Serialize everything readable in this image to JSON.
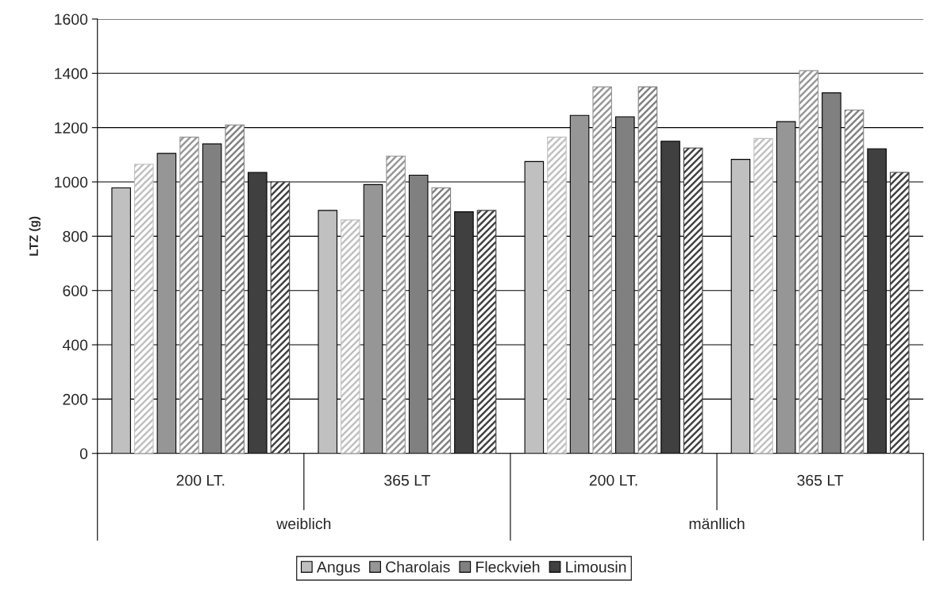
{
  "chart_data": {
    "type": "bar",
    "ylabel": "LTZ (g)",
    "categories": [
      "200 LT.",
      "365 LT",
      "200 LT.",
      "365 LT"
    ],
    "series": [
      {
        "name": "Angus",
        "color": "#c0c0c0",
        "values": [
          978,
          895,
          1075,
          1083
        ]
      },
      {
        "color": "#c0c0c0",
        "values": [
          1065,
          860,
          1165,
          1160
        ]
      },
      {
        "name": "Charolais",
        "color": "#969696",
        "values": [
          1105,
          990,
          1245,
          1222
        ]
      },
      {
        "color": "#969696",
        "values": [
          1165,
          1095,
          1350,
          1410
        ]
      },
      {
        "name": "Fleckvieh",
        "color": "#808080",
        "values": [
          1140,
          1025,
          1240,
          1328
        ]
      },
      {
        "color": "#808080",
        "values": [
          1210,
          978,
          1350,
          1265
        ]
      },
      {
        "name": "Limousin",
        "color": "#404040",
        "values": [
          1035,
          890,
          1150,
          1122
        ]
      },
      {
        "color": "#404040",
        "values": [
          1000,
          895,
          1125,
          1035
        ]
      }
    ],
    "annotations": [
      "weiblich",
      "mänllich"
    ],
    "ylim": [
      0,
      1600
    ],
    "yticks": [
      0,
      200,
      400,
      600,
      800,
      1000,
      1200,
      1400,
      1600
    ],
    "grid": "y",
    "legend": "bottom"
  }
}
